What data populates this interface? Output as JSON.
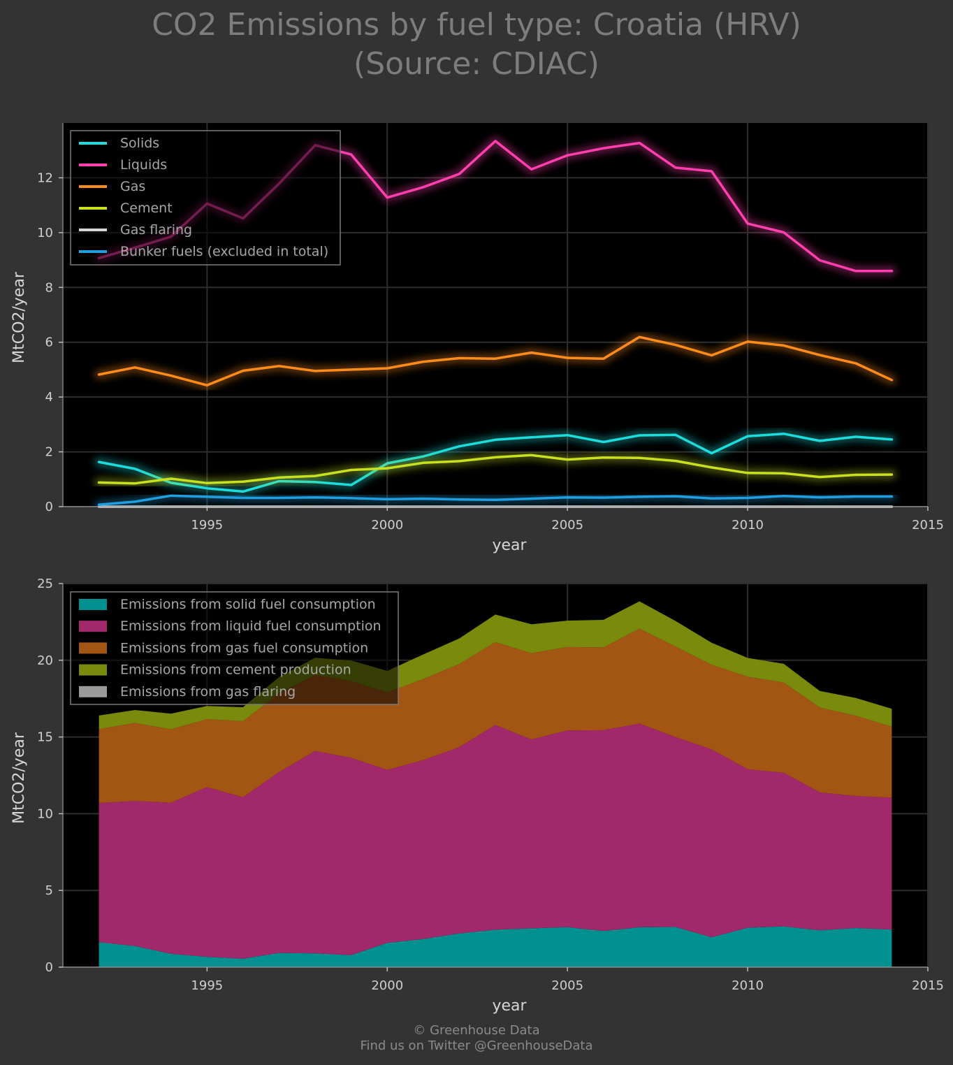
{
  "title": {
    "line1": "CO2 Emissions by fuel type: Croatia (HRV)",
    "line2": "(Source: CDIAC)"
  },
  "footer": {
    "line1": "© Greenhouse Data",
    "line2": "Find us on Twitter @GreenhouseData"
  },
  "chart_data": [
    {
      "type": "line",
      "xlabel": "year",
      "ylabel": "MtCO2/year",
      "xlim": [
        1991,
        2015
      ],
      "ylim": [
        0,
        14
      ],
      "xticks": [
        1995,
        2000,
        2005,
        2010,
        2015
      ],
      "yticks": [
        0,
        2,
        4,
        6,
        8,
        10,
        12
      ],
      "grid": true,
      "legend_position": "top-left",
      "x": [
        1992,
        1993,
        1994,
        1995,
        1996,
        1997,
        1998,
        1999,
        2000,
        2001,
        2002,
        2003,
        2004,
        2005,
        2006,
        2007,
        2008,
        2009,
        2010,
        2011,
        2012,
        2013,
        2014
      ],
      "series": [
        {
          "name": "Solids",
          "color": "#1cdcdc",
          "values": [
            1.63,
            1.38,
            0.87,
            0.67,
            0.55,
            0.93,
            0.9,
            0.79,
            1.58,
            1.83,
            2.2,
            2.44,
            2.53,
            2.61,
            2.36,
            2.6,
            2.62,
            1.95,
            2.57,
            2.66,
            2.4,
            2.55,
            2.45
          ]
        },
        {
          "name": "Liquids",
          "color": "#ff3fae",
          "values": [
            9.07,
            9.45,
            9.85,
            11.06,
            10.52,
            11.79,
            13.19,
            12.85,
            11.28,
            11.66,
            12.14,
            13.34,
            12.31,
            12.82,
            13.08,
            13.27,
            12.37,
            12.24,
            10.33,
            10.01,
            8.99,
            8.6,
            8.6
          ]
        },
        {
          "name": "Gas",
          "color": "#ff8c1a",
          "values": [
            4.82,
            5.08,
            4.78,
            4.43,
            4.96,
            5.13,
            4.95,
            5.0,
            5.05,
            5.29,
            5.42,
            5.4,
            5.62,
            5.43,
            5.4,
            6.19,
            5.9,
            5.52,
            6.02,
            5.88,
            5.53,
            5.23,
            4.62
          ]
        },
        {
          "name": "Cement",
          "color": "#c8e01e",
          "values": [
            0.88,
            0.85,
            1.02,
            0.86,
            0.91,
            1.06,
            1.12,
            1.34,
            1.4,
            1.6,
            1.66,
            1.8,
            1.88,
            1.72,
            1.79,
            1.78,
            1.67,
            1.43,
            1.23,
            1.22,
            1.08,
            1.16,
            1.17
          ]
        },
        {
          "name": "Gas flaring",
          "color": "#d6d6d6",
          "values": [
            0,
            0,
            0,
            0,
            0,
            0,
            0,
            0,
            0,
            0,
            0,
            0,
            0,
            0,
            0,
            0,
            0,
            0,
            0,
            0,
            0,
            0,
            0
          ]
        },
        {
          "name": "Bunker fuels (excluded in total)",
          "color": "#1f9ee0",
          "values": [
            0.07,
            0.18,
            0.4,
            0.36,
            0.32,
            0.32,
            0.34,
            0.31,
            0.27,
            0.29,
            0.26,
            0.25,
            0.29,
            0.34,
            0.33,
            0.36,
            0.38,
            0.3,
            0.32,
            0.39,
            0.34,
            0.37,
            0.37
          ]
        }
      ]
    },
    {
      "type": "area",
      "stacked": true,
      "xlabel": "year",
      "ylabel": "MtCO2/year",
      "xlim": [
        1991,
        2015
      ],
      "ylim": [
        0,
        25
      ],
      "xticks": [
        1995,
        2000,
        2005,
        2010,
        2015
      ],
      "yticks": [
        0,
        5,
        10,
        15,
        20,
        25
      ],
      "grid": true,
      "legend_position": "top-left",
      "x": [
        1992,
        1993,
        1994,
        1995,
        1996,
        1997,
        1998,
        1999,
        2000,
        2001,
        2002,
        2003,
        2004,
        2005,
        2006,
        2007,
        2008,
        2009,
        2010,
        2011,
        2012,
        2013,
        2014
      ],
      "series": [
        {
          "name": "Emissions from solid fuel consumption",
          "color": "#009090",
          "values": [
            1.63,
            1.38,
            0.87,
            0.67,
            0.55,
            0.93,
            0.9,
            0.79,
            1.58,
            1.83,
            2.2,
            2.44,
            2.53,
            2.61,
            2.36,
            2.6,
            2.62,
            1.95,
            2.57,
            2.66,
            2.4,
            2.55,
            2.45
          ]
        },
        {
          "name": "Emissions from liquid fuel consumption",
          "color": "#a1286a",
          "values": [
            9.07,
            9.45,
            9.85,
            11.06,
            10.52,
            11.79,
            13.19,
            12.85,
            11.28,
            11.66,
            12.14,
            13.34,
            12.31,
            12.82,
            13.08,
            13.27,
            12.37,
            12.24,
            10.33,
            10.01,
            8.99,
            8.6,
            8.6
          ]
        },
        {
          "name": "Emissions from gas fuel consumption",
          "color": "#a35514",
          "values": [
            4.82,
            5.08,
            4.78,
            4.43,
            4.96,
            5.13,
            4.95,
            5.0,
            5.05,
            5.29,
            5.42,
            5.4,
            5.62,
            5.43,
            5.4,
            6.19,
            5.9,
            5.52,
            6.02,
            5.88,
            5.53,
            5.23,
            4.62
          ]
        },
        {
          "name": "Emissions from cement production",
          "color": "#7a8a0c",
          "values": [
            0.88,
            0.85,
            1.02,
            0.86,
            0.91,
            1.06,
            1.12,
            1.34,
            1.4,
            1.6,
            1.66,
            1.8,
            1.88,
            1.72,
            1.79,
            1.78,
            1.67,
            1.43,
            1.23,
            1.22,
            1.08,
            1.16,
            1.17
          ]
        },
        {
          "name": "Emissions from gas flaring",
          "color": "#9a9a9a",
          "values": [
            0,
            0,
            0,
            0,
            0,
            0,
            0,
            0,
            0,
            0,
            0,
            0,
            0,
            0,
            0,
            0,
            0,
            0,
            0,
            0,
            0,
            0,
            0
          ]
        }
      ]
    }
  ]
}
